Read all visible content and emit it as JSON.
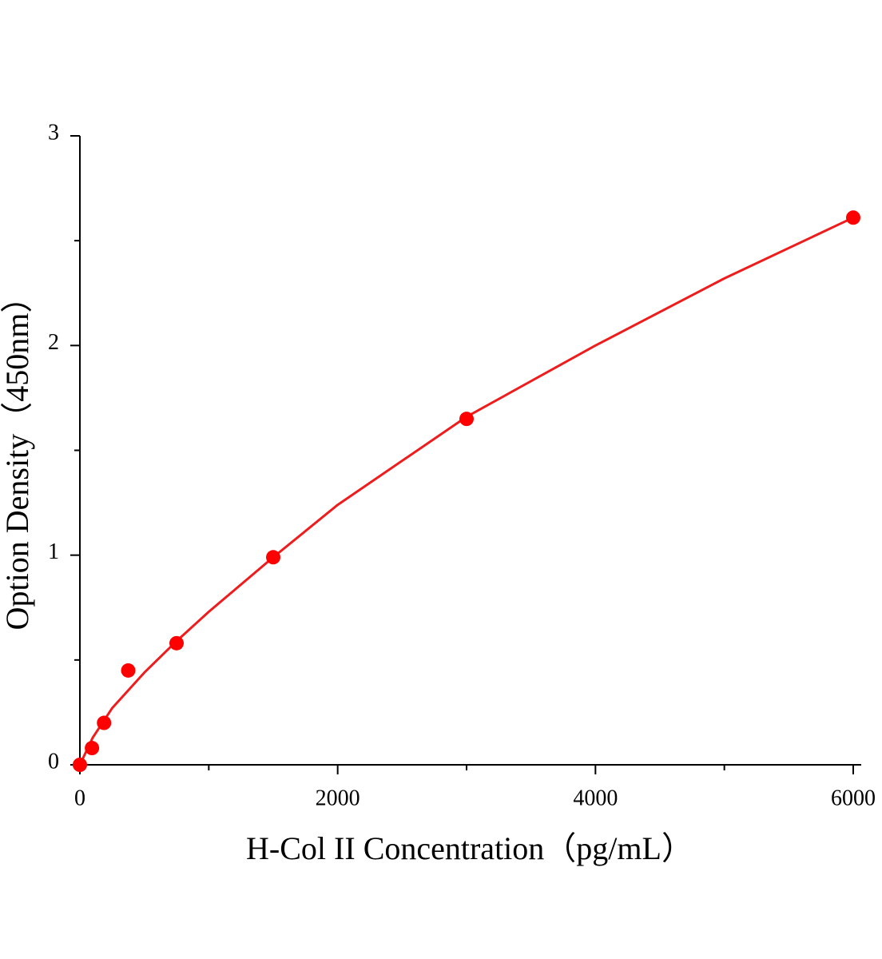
{
  "chart_data": {
    "type": "scatter",
    "x_label": "H-Col II Concentration（pg/mL）",
    "y_label": "Option Density（450nm）",
    "x": [
      0,
      93.75,
      187.5,
      375,
      750,
      1500,
      3000,
      6000
    ],
    "values": [
      0,
      0.08,
      0.2,
      0.45,
      0.58,
      0.99,
      1.65,
      2.61
    ],
    "color": "#ff0000",
    "fit": {
      "x": [
        0,
        100,
        250,
        500,
        750,
        1000,
        1500,
        2000,
        3000,
        4000,
        5000,
        6000
      ],
      "values": [
        0,
        0.13,
        0.27,
        0.44,
        0.59,
        0.73,
        0.99,
        1.24,
        1.66,
        2.0,
        2.32,
        2.61
      ],
      "color": "#ee1c1c"
    },
    "xlim": [
      0,
      6062
    ],
    "ylim": [
      0,
      3
    ],
    "xticks": [
      0,
      2000,
      4000,
      6000
    ],
    "yticks": [
      0,
      1,
      2,
      3
    ],
    "xminorticks": [
      1000,
      3000,
      5000
    ],
    "yminorticks": [
      0.5,
      1.5,
      2.5
    ]
  }
}
